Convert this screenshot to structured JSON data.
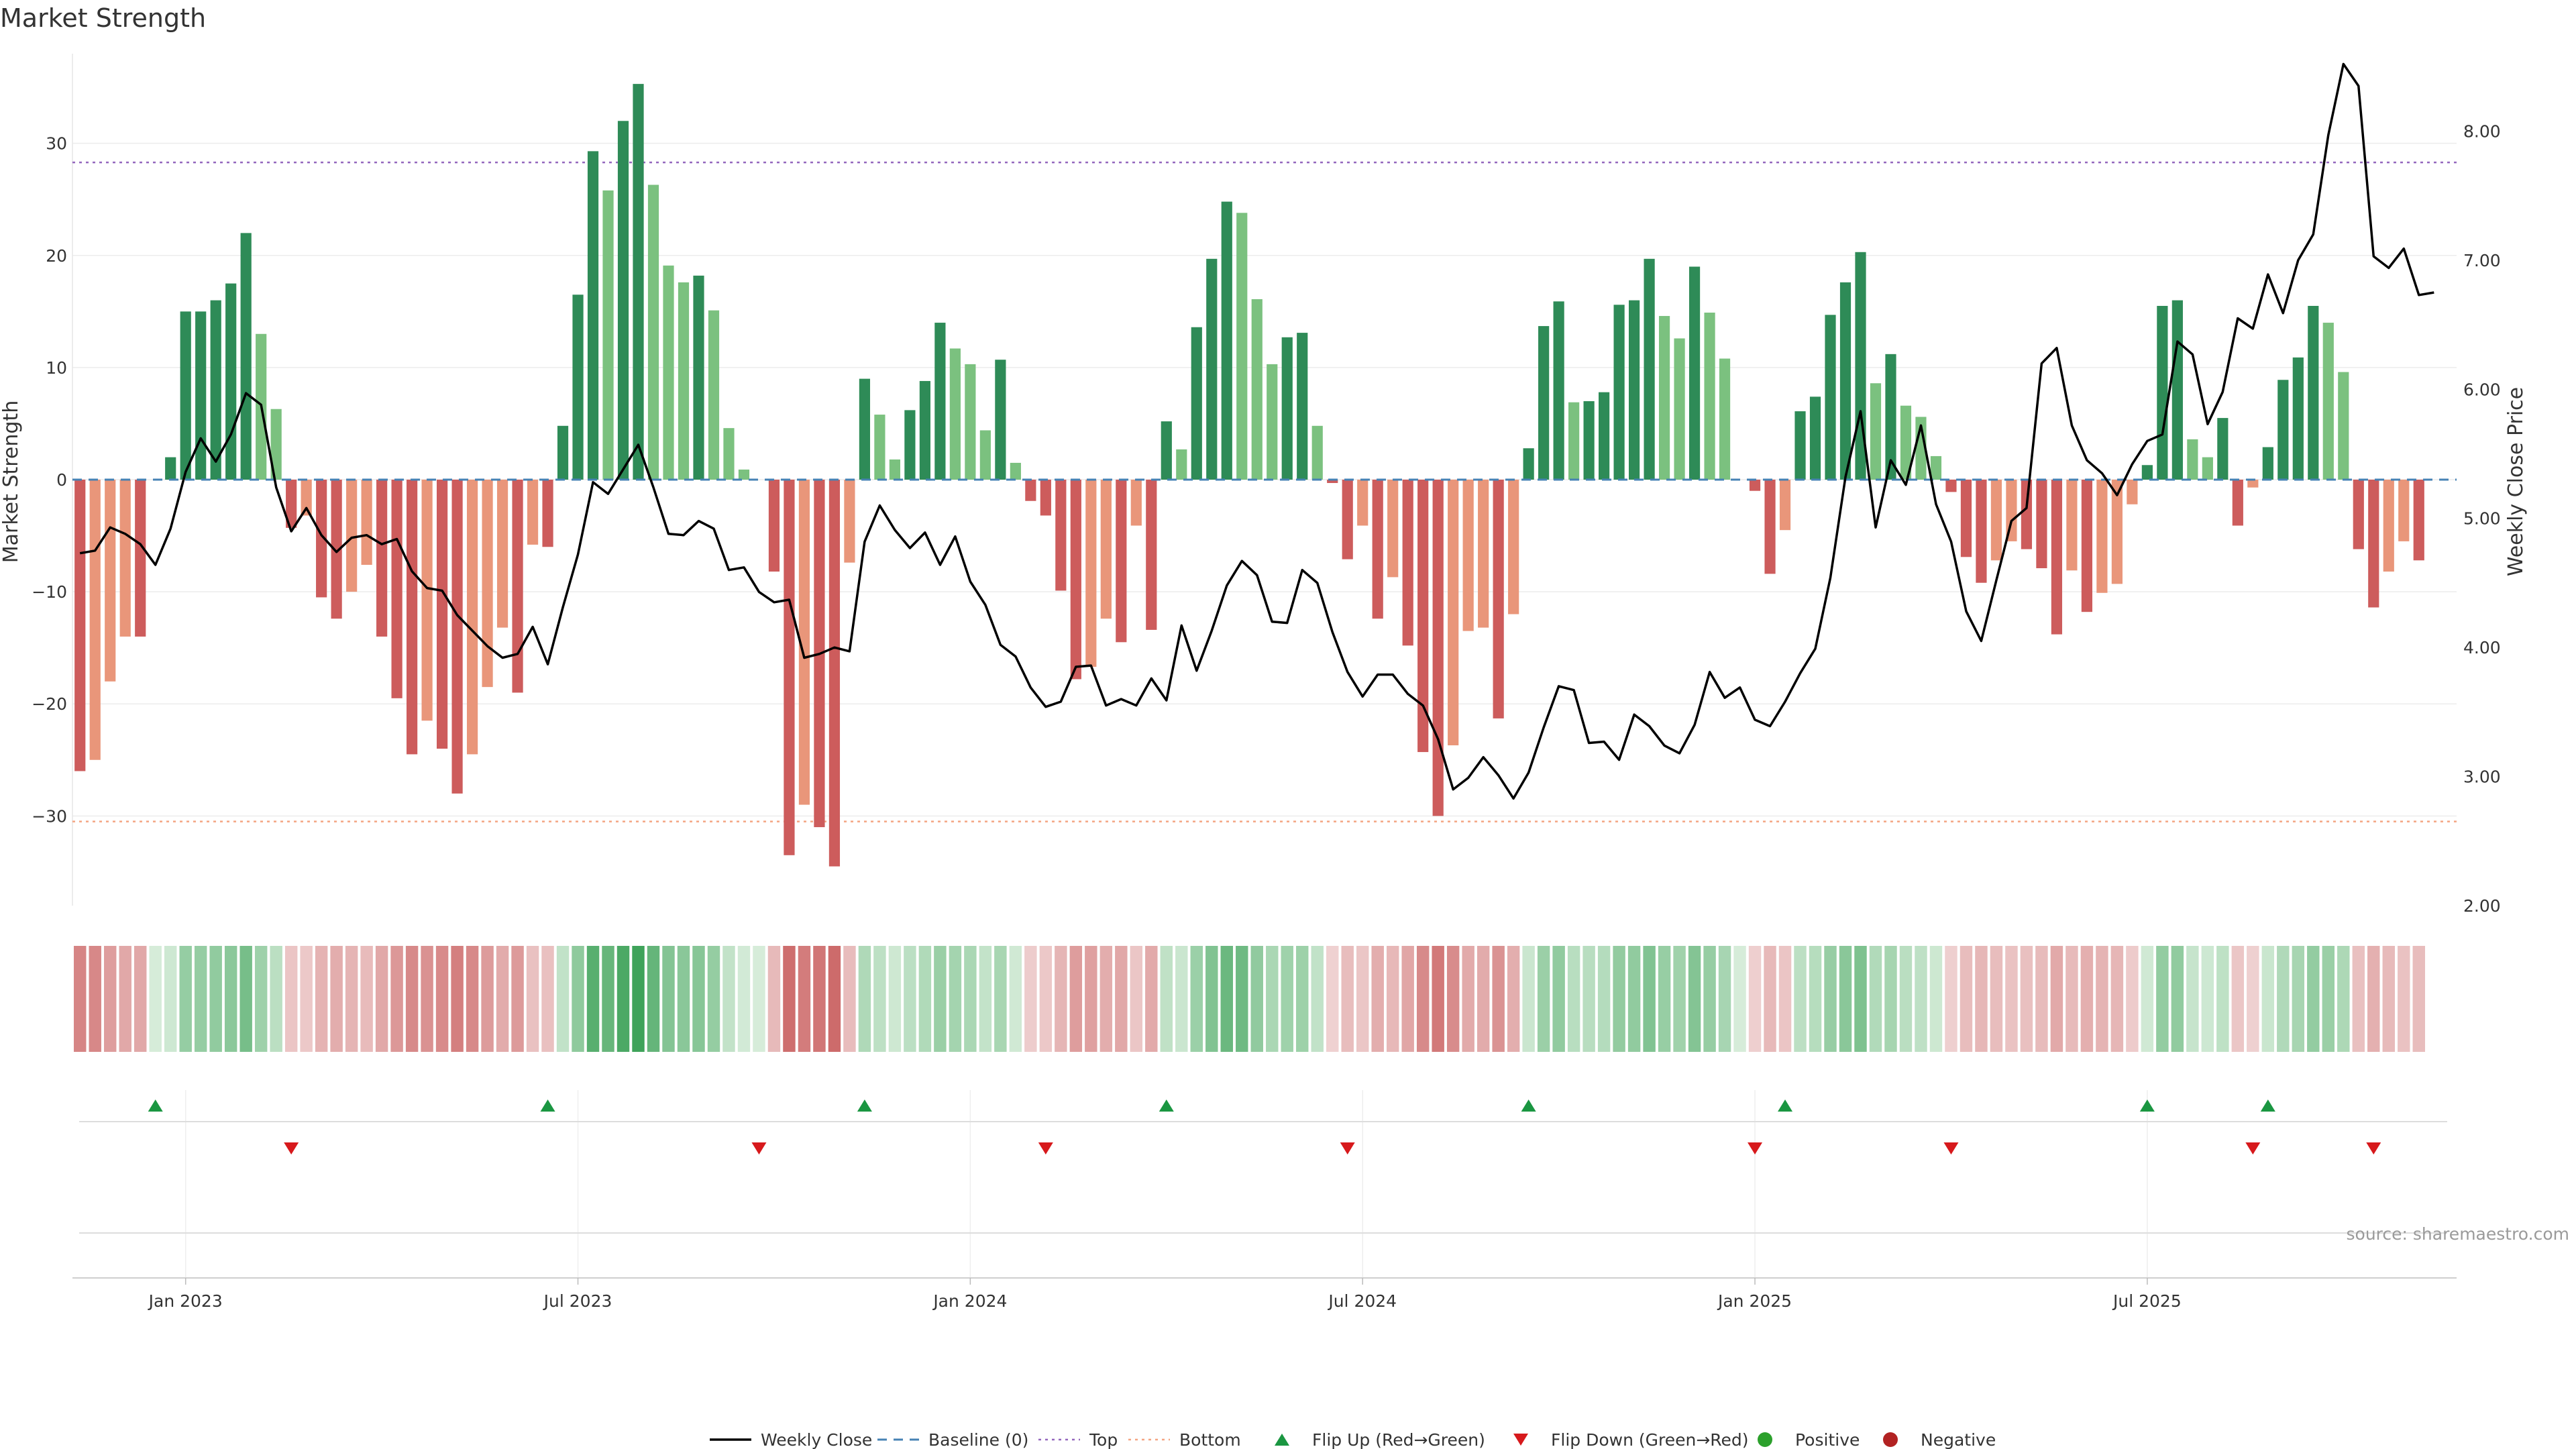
{
  "chart_data": {
    "type": "bar+line",
    "title": "Market Strength",
    "ylabel_left": "Market Strength",
    "ylabel_right": "Weekly Close Price",
    "source": "source: sharemaestro.com",
    "x_tick_labels": [
      "Jan 2023",
      "Jul 2023",
      "Jan 2024",
      "Jul 2024",
      "Jan 2025",
      "Jul 2025"
    ],
    "x_tick_weeks": [
      7,
      33,
      59,
      85,
      111,
      137
    ],
    "y_left_ticks": [
      "30",
      "20",
      "10",
      "0",
      "−10",
      "−20",
      "−30"
    ],
    "y_left_tick_values": [
      30,
      20,
      10,
      0,
      -10,
      -20,
      -30
    ],
    "ylim_left": [
      -38,
      38
    ],
    "y_right_ticks": [
      "8.00",
      "7.00",
      "6.00",
      "5.00",
      "4.00",
      "3.00",
      "2.00"
    ],
    "y_right_tick_values": [
      8,
      7,
      6,
      5,
      4,
      3,
      2
    ],
    "ylim_right": [
      2,
      8.6
    ],
    "top_level": 28.3,
    "bottom_level": -30.5,
    "weeks": 158,
    "strength": [
      -26,
      -25,
      -18,
      -14,
      -14,
      0,
      2,
      15,
      15,
      16,
      17.5,
      22,
      13,
      6.3,
      -4.3,
      -3.2,
      -10.5,
      -12.4,
      -10,
      -7.6,
      -14,
      -19.5,
      -24.5,
      -21.5,
      -24,
      -28,
      -24.5,
      -18.5,
      -13.2,
      -19,
      -5.8,
      -6,
      4.8,
      16.5,
      29.3,
      25.8,
      32,
      35.3,
      26.3,
      19.1,
      17.6,
      18.2,
      15.1,
      4.6,
      0.9,
      0,
      -8.2,
      -33.5,
      -29,
      -31,
      -34.5,
      -7.4,
      9,
      5.8,
      1.8,
      6.2,
      8.8,
      14,
      11.7,
      10.3,
      4.4,
      10.7,
      1.5,
      -1.9,
      -3.2,
      -9.9,
      -17.8,
      -16.7,
      -12.4,
      -14.5,
      -4.1,
      -13.4,
      5.2,
      2.7,
      13.6,
      19.7,
      24.8,
      23.8,
      16.1,
      10.3,
      12.7,
      13.1,
      4.8,
      -0.3,
      -7.1,
      -4.1,
      -12.4,
      -8.7,
      -14.8,
      -24.3,
      -30,
      -23.7,
      -13.5,
      -13.2,
      -21.3,
      -12,
      2.8,
      13.7,
      15.9,
      6.9,
      7,
      7.8,
      15.6,
      16,
      19.7,
      14.6,
      12.6,
      19,
      14.9,
      10.8,
      0,
      -1,
      -8.4,
      -4.5,
      6.1,
      7.4,
      14.7,
      17.6,
      20.3,
      8.6,
      11.2,
      6.6,
      5.6,
      2.1,
      -1.1,
      -6.9,
      -9.2,
      -7.2,
      -5.5,
      -6.2,
      -7.9,
      -13.8,
      -8.1,
      -11.8,
      -10.1,
      -9.3,
      -2.2,
      1.3,
      15.5,
      16,
      3.6,
      2.0,
      5.5,
      -4.1,
      -0.7,
      2.9,
      8.9,
      10.9,
      15.5,
      14,
      9.6,
      -6.2,
      -11.4,
      -8.2,
      -5.5,
      -7.2
    ],
    "weekly_close": [
      4.73,
      4.75,
      4.93,
      4.88,
      4.8,
      4.64,
      4.92,
      5.36,
      5.62,
      5.44,
      5.65,
      5.97,
      5.88,
      5.24,
      4.9,
      5.08,
      4.87,
      4.74,
      4.85,
      4.87,
      4.8,
      4.84,
      4.59,
      4.46,
      4.44,
      4.25,
      4.13,
      4.01,
      3.92,
      3.95,
      4.16,
      3.87,
      4.31,
      4.72,
      5.28,
      5.19,
      5.38,
      5.57,
      5.24,
      4.88,
      4.87,
      4.98,
      4.92,
      4.6,
      4.62,
      4.43,
      4.35,
      4.37,
      3.92,
      3.95,
      4.0,
      3.97,
      4.82,
      5.1,
      4.91,
      4.77,
      4.89,
      4.64,
      4.86,
      4.51,
      4.33,
      4.02,
      3.93,
      3.69,
      3.54,
      3.58,
      3.85,
      3.86,
      3.55,
      3.6,
      3.55,
      3.76,
      3.59,
      4.17,
      3.82,
      4.13,
      4.48,
      4.67,
      4.56,
      4.2,
      4.19,
      4.6,
      4.5,
      4.12,
      3.81,
      3.62,
      3.79,
      3.79,
      3.64,
      3.55,
      3.29,
      2.9,
      2.99,
      3.15,
      3.01,
      2.83,
      3.03,
      3.38,
      3.7,
      3.67,
      3.26,
      3.27,
      3.13,
      3.48,
      3.39,
      3.24,
      3.18,
      3.4,
      3.81,
      3.61,
      3.69,
      3.44,
      3.39,
      3.58,
      3.8,
      3.99,
      4.54,
      5.32,
      5.83,
      4.93,
      5.45,
      5.26,
      5.72,
      5.11,
      4.82,
      4.28,
      4.05,
      4.52,
      4.98,
      5.08,
      6.2,
      6.32,
      5.72,
      5.45,
      5.35,
      5.18,
      5.42,
      5.6,
      5.65,
      6.37,
      6.27,
      5.73,
      5.98,
      6.55,
      6.47,
      6.89,
      6.59,
      7.0,
      7.2,
      7.97,
      8.52,
      8.35,
      7.03,
      6.94,
      7.09,
      6.73,
      6.75
    ],
    "heat_strip": {
      "neg_dark": "#cd6a6a",
      "neg_light": "#efd2d2",
      "pos_dark": "#3fa35a",
      "pos_light": "#d6ecd9"
    },
    "flip_up_weeks": [
      5,
      31,
      52,
      72,
      96,
      113,
      137,
      145
    ],
    "flip_down_weeks": [
      14,
      45,
      64,
      84,
      111,
      124,
      144,
      152
    ],
    "colors": {
      "pos_strong": "#2e8b57",
      "pos_weak": "#7bc17f",
      "neg_strong": "#cd5c5c",
      "neg_weak": "#e9967a",
      "line": "#000000",
      "baseline": "#4682b4",
      "top": "#9467bd",
      "bottom": "#f4a582",
      "flip_up": "#1a9641",
      "flip_down": "#d7191c",
      "positive": "#2ca02c",
      "negative": "#b22222"
    },
    "legend": [
      {
        "label": "Weekly Close",
        "kind": "line"
      },
      {
        "label": "Baseline (0)",
        "kind": "dash"
      },
      {
        "label": "Top",
        "kind": "dot-top"
      },
      {
        "label": "Bottom",
        "kind": "dot-bottom"
      },
      {
        "label": "Flip Up (Red→Green)",
        "kind": "tri-up"
      },
      {
        "label": "Flip Down (Green→Red)",
        "kind": "tri-down"
      },
      {
        "label": "Positive",
        "kind": "dot-pos"
      },
      {
        "label": "Negative",
        "kind": "dot-neg"
      }
    ]
  }
}
